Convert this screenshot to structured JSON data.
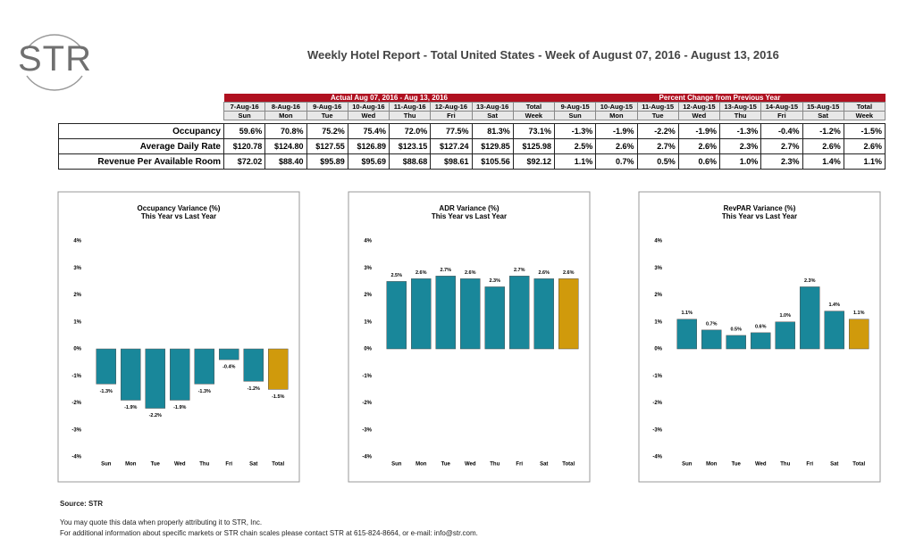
{
  "header": {
    "logo": "STR",
    "title": "Weekly Hotel Report - Total United States - Week of August 07, 2016 - August 13, 2016"
  },
  "table": {
    "groups": [
      "Actual Aug 07, 2016 - Aug 13, 2016",
      "Percent Change from Previous Year"
    ],
    "dates": [
      "7-Aug-16",
      "8-Aug-16",
      "9-Aug-16",
      "10-Aug-16",
      "11-Aug-16",
      "12-Aug-16",
      "13-Aug-16",
      "Total",
      "9-Aug-15",
      "10-Aug-15",
      "11-Aug-15",
      "12-Aug-15",
      "13-Aug-15",
      "14-Aug-15",
      "15-Aug-15",
      "Total"
    ],
    "days": [
      "Sun",
      "Mon",
      "Tue",
      "Wed",
      "Thu",
      "Fri",
      "Sat",
      "Week",
      "Sun",
      "Mon",
      "Tue",
      "Wed",
      "Thu",
      "Fri",
      "Sat",
      "Week"
    ],
    "rows": [
      {
        "label": "Occupancy",
        "cells": [
          "59.6%",
          "70.8%",
          "75.2%",
          "75.4%",
          "72.0%",
          "77.5%",
          "81.3%",
          "73.1%",
          "-1.3%",
          "-1.9%",
          "-2.2%",
          "-1.9%",
          "-1.3%",
          "-0.4%",
          "-1.2%",
          "-1.5%"
        ]
      },
      {
        "label": "Average Daily Rate",
        "cells": [
          "$120.78",
          "$124.80",
          "$127.55",
          "$126.89",
          "$123.15",
          "$127.24",
          "$129.85",
          "$125.98",
          "2.5%",
          "2.6%",
          "2.7%",
          "2.6%",
          "2.3%",
          "2.7%",
          "2.6%",
          "2.6%"
        ]
      },
      {
        "label": "Revenue Per Available Room",
        "cells": [
          "$72.02",
          "$88.40",
          "$95.89",
          "$95.69",
          "$88.68",
          "$98.61",
          "$105.56",
          "$92.12",
          "1.1%",
          "0.7%",
          "0.5%",
          "0.6%",
          "1.0%",
          "2.3%",
          "1.4%",
          "1.1%"
        ]
      }
    ]
  },
  "chart_data": [
    {
      "type": "bar",
      "title": "Occupancy Variance (%)",
      "subtitle": "This Year vs Last Year",
      "categories": [
        "Sun",
        "Mon",
        "Tue",
        "Wed",
        "Thu",
        "Fri",
        "Sat",
        "Total"
      ],
      "values": [
        -1.3,
        -1.9,
        -2.2,
        -1.9,
        -1.3,
        -0.4,
        -1.2,
        -1.5
      ],
      "value_labels": [
        "-1.3%",
        "-1.9%",
        "-2.2%",
        "-1.9%",
        "-1.3%",
        "-0.4%",
        "-1.2%",
        "-1.5%"
      ],
      "colors": [
        "#19879a",
        "#19879a",
        "#19879a",
        "#19879a",
        "#19879a",
        "#19879a",
        "#19879a",
        "#d09a0c"
      ],
      "ylim": [
        -4,
        4
      ],
      "yticks": [
        {
          "value": 4,
          "label": "4%"
        },
        {
          "value": 3,
          "label": "3%"
        },
        {
          "value": 2,
          "label": "2%"
        },
        {
          "value": 1,
          "label": "1%"
        },
        {
          "value": 0,
          "label": "0%"
        },
        {
          "value": -1,
          "label": "-1%"
        },
        {
          "value": -2,
          "label": "-2%"
        },
        {
          "value": -3,
          "label": "-3%"
        },
        {
          "value": -4,
          "label": "-4%"
        }
      ]
    },
    {
      "type": "bar",
      "title": "ADR Variance (%)",
      "subtitle": "This Year vs Last Year",
      "categories": [
        "Sun",
        "Mon",
        "Tue",
        "Wed",
        "Thu",
        "Fri",
        "Sat",
        "Total"
      ],
      "values": [
        2.5,
        2.6,
        2.7,
        2.6,
        2.3,
        2.7,
        2.6,
        2.6
      ],
      "value_labels": [
        "2.5%",
        "2.6%",
        "2.7%",
        "2.6%",
        "2.3%",
        "2.7%",
        "2.6%",
        "2.6%"
      ],
      "colors": [
        "#19879a",
        "#19879a",
        "#19879a",
        "#19879a",
        "#19879a",
        "#19879a",
        "#19879a",
        "#d09a0c"
      ],
      "ylim": [
        -4,
        4
      ],
      "yticks": [
        {
          "value": 4,
          "label": "4%"
        },
        {
          "value": 3,
          "label": "3%"
        },
        {
          "value": 2,
          "label": "2%"
        },
        {
          "value": 1,
          "label": "1%"
        },
        {
          "value": 0,
          "label": "0%"
        },
        {
          "value": -1,
          "label": "-1%"
        },
        {
          "value": -2,
          "label": "-2%"
        },
        {
          "value": -3,
          "label": "-3%"
        },
        {
          "value": -4,
          "label": "-4%"
        }
      ]
    },
    {
      "type": "bar",
      "title": "RevPAR Variance (%)",
      "subtitle": "This Year vs Last Year",
      "categories": [
        "Sun",
        "Mon",
        "Tue",
        "Wed",
        "Thu",
        "Fri",
        "Sat",
        "Total"
      ],
      "values": [
        1.1,
        0.7,
        0.5,
        0.6,
        1.0,
        2.3,
        1.4,
        1.1
      ],
      "value_labels": [
        "1.1%",
        "0.7%",
        "0.5%",
        "0.6%",
        "1.0%",
        "2.3%",
        "1.4%",
        "1.1%"
      ],
      "colors": [
        "#19879a",
        "#19879a",
        "#19879a",
        "#19879a",
        "#19879a",
        "#19879a",
        "#19879a",
        "#d09a0c"
      ],
      "ylim": [
        -4,
        4
      ],
      "yticks": [
        {
          "value": 4,
          "label": "4%"
        },
        {
          "value": 3,
          "label": "3%"
        },
        {
          "value": 2,
          "label": "2%"
        },
        {
          "value": 1,
          "label": "1%"
        },
        {
          "value": 0,
          "label": "0%"
        },
        {
          "value": -1,
          "label": "-1%"
        },
        {
          "value": -2,
          "label": "-2%"
        },
        {
          "value": -3,
          "label": "-3%"
        },
        {
          "value": -4,
          "label": "-4%"
        }
      ]
    }
  ],
  "footer": {
    "source": "Source: STR",
    "lines": [
      "You may quote this data when properly attributing it to STR, Inc.",
      "For additional information about specific markets or STR chain scales please contact STR at 615-824-8664, or e-mail: info@str.com."
    ]
  }
}
